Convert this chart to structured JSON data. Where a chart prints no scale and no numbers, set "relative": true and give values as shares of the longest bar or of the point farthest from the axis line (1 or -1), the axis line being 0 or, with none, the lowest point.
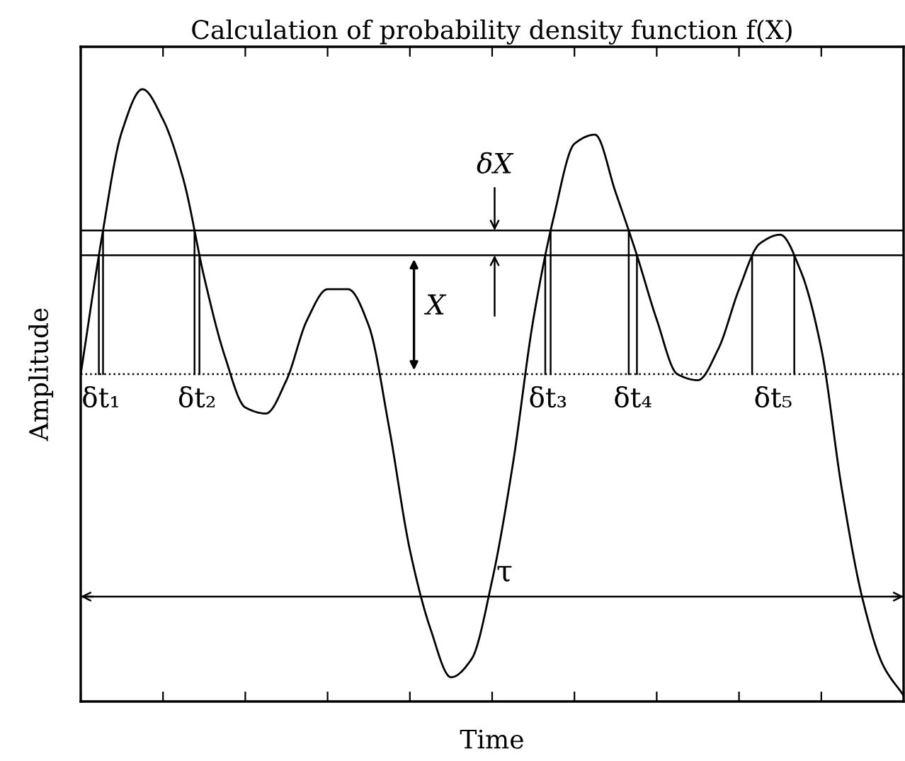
{
  "chart_data": {
    "type": "line",
    "relative": true,
    "title": "Calculation of probability density function f(X)",
    "xlabel": "Time",
    "ylabel": "Amplitude",
    "tick_labels": false,
    "legend": false,
    "marker": "none",
    "line_style": "solid",
    "categories": [
      null,
      null,
      null,
      null,
      null,
      null,
      null,
      null,
      null,
      null,
      null,
      null,
      null,
      null,
      null,
      null,
      null,
      null,
      null,
      null,
      null,
      null,
      null,
      null,
      null,
      null,
      null,
      null,
      null,
      null,
      null,
      null,
      null,
      null,
      null,
      null,
      null,
      null,
      null,
      null,
      null
    ],
    "series": [
      {
        "color": "#000000",
        "values": [
          0.53,
          0.75,
          0.93,
          1.0,
          0.95,
          0.85,
          0.69,
          0.56,
          0.475,
          0.465,
          0.52,
          0.619,
          0.67,
          0.67,
          0.61,
          0.44,
          0.24,
          0.11,
          0.03,
          0.06,
          0.19,
          0.38,
          0.62,
          0.79,
          0.91,
          0.925,
          0.83,
          0.73,
          0.62,
          0.53,
          0.52,
          0.572,
          0.67,
          0.745,
          0.76,
          0.7,
          0.572,
          0.34,
          0.16,
          0.05,
          0
        ]
      }
    ],
    "ref_lines": [
      {
        "axis": "y",
        "value": 0.767,
        "color": "#000000",
        "line_style": "solid"
      },
      {
        "axis": "y",
        "value": 0.726,
        "color": "#000000",
        "line_style": "solid"
      },
      {
        "axis": "y",
        "value": 0.53,
        "color": "#000000",
        "line_style": "dotted"
      },
      {
        "axis": "y",
        "value": 0.163,
        "color": "#000000",
        "line_style": "solid",
        "label": "τ"
      }
    ],
    "annotations": [
      "δt₁",
      "δt₂",
      "δt₃",
      "δt₄",
      "δt₅",
      "X",
      "δX"
    ]
  }
}
